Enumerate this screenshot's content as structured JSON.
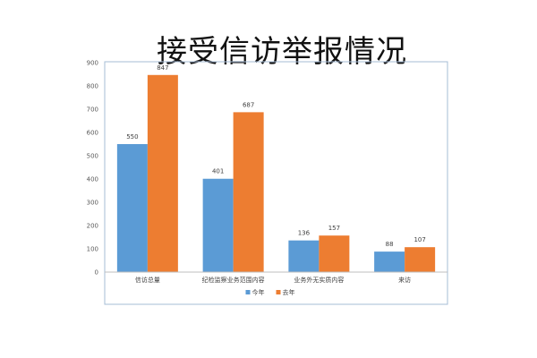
{
  "chart_data": {
    "type": "bar",
    "title": "接受信访举报情况",
    "categories": [
      "信访总量",
      "纪检监察业务范围内容",
      "业务外无实质内容",
      "来访"
    ],
    "series": [
      {
        "name": "今年",
        "values": [
          550,
          401,
          136,
          88
        ],
        "color": "#5b9bd5"
      },
      {
        "name": "去年",
        "values": [
          847,
          687,
          157,
          107
        ],
        "color": "#ed7d31"
      }
    ],
    "ylim": [
      0,
      900
    ],
    "yticks": [
      0,
      100,
      200,
      300,
      400,
      500,
      600,
      700,
      800,
      900
    ],
    "grid": false,
    "legend_position": "bottom",
    "data_labels": true,
    "xlabel": "",
    "ylabel": ""
  }
}
